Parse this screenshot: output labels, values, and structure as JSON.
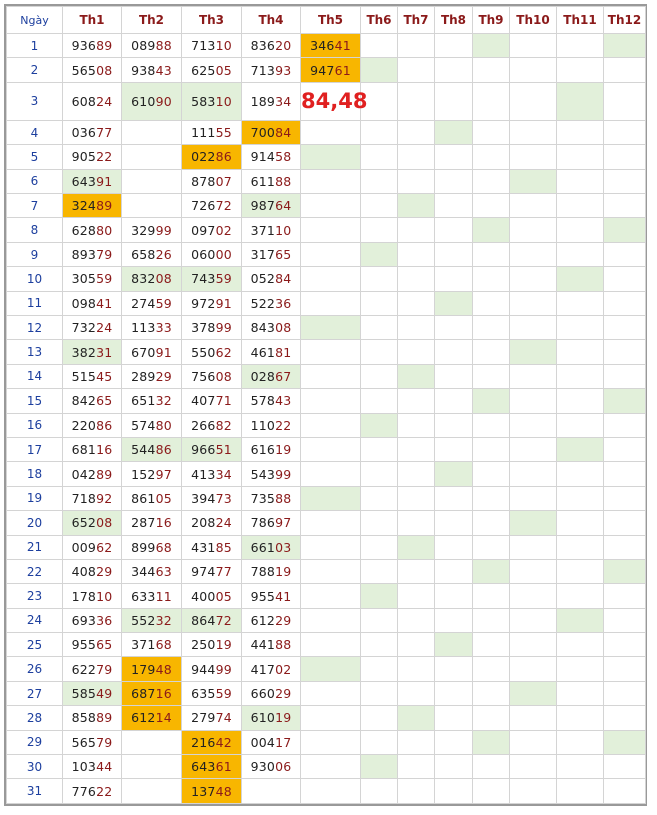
{
  "headers": [
    "Ngày",
    "Th1",
    "Th2",
    "Th3",
    "Th4",
    "Th5",
    "Th6",
    "Th7",
    "Th8",
    "Th9",
    "Th10",
    "Th11",
    "Th12"
  ],
  "highlight_colors": {
    "green": "#e2f0da",
    "orange": "#f8b600",
    "result_text": "#e02020"
  },
  "rows": [
    {
      "day": "1",
      "values": [
        "93689",
        "08988",
        "71310",
        "83620",
        "34641",
        "",
        "",
        "",
        "",
        "",
        "",
        ""
      ],
      "green": [
        8,
        11
      ],
      "orange": [
        4
      ]
    },
    {
      "day": "2",
      "values": [
        "56508",
        "93843",
        "62505",
        "71393",
        "94761",
        "",
        "",
        "",
        "",
        "",
        "",
        ""
      ],
      "green": [
        5
      ],
      "orange": [
        4
      ]
    },
    {
      "day": "3",
      "values": [
        "60824",
        "61090",
        "58310",
        "18934",
        "84,48",
        "",
        "",
        "",
        "",
        "",
        "",
        ""
      ],
      "green": [
        1,
        2,
        10
      ],
      "orange": [],
      "big": 4
    },
    {
      "day": "4",
      "values": [
        "03677",
        "",
        "11155",
        "70084",
        "",
        "",
        "",
        "",
        "",
        "",
        "",
        ""
      ],
      "green": [
        7
      ],
      "orange": [
        3
      ]
    },
    {
      "day": "5",
      "values": [
        "90522",
        "",
        "02286",
        "91458",
        "",
        "",
        "",
        "",
        "",
        "",
        "",
        ""
      ],
      "green": [
        4
      ],
      "orange": [
        2
      ]
    },
    {
      "day": "6",
      "values": [
        "64391",
        "",
        "87807",
        "61188",
        "",
        "",
        "",
        "",
        "",
        "",
        "",
        ""
      ],
      "green": [
        0,
        9
      ],
      "orange": []
    },
    {
      "day": "7",
      "values": [
        "32489",
        "",
        "72672",
        "98764",
        "",
        "",
        "",
        "",
        "",
        "",
        "",
        ""
      ],
      "green": [
        3,
        6
      ],
      "orange": [
        0
      ]
    },
    {
      "day": "8",
      "values": [
        "62880",
        "32999",
        "09702",
        "37110",
        "",
        "",
        "",
        "",
        "",
        "",
        "",
        ""
      ],
      "green": [
        8,
        11
      ],
      "orange": []
    },
    {
      "day": "9",
      "values": [
        "89379",
        "65826",
        "06000",
        "31765",
        "",
        "",
        "",
        "",
        "",
        "",
        "",
        ""
      ],
      "green": [
        5
      ],
      "orange": []
    },
    {
      "day": "10",
      "values": [
        "30559",
        "83208",
        "74359",
        "05284",
        "",
        "",
        "",
        "",
        "",
        "",
        "",
        ""
      ],
      "green": [
        1,
        2,
        10
      ],
      "orange": []
    },
    {
      "day": "11",
      "values": [
        "09841",
        "27459",
        "97291",
        "52236",
        "",
        "",
        "",
        "",
        "",
        "",
        "",
        ""
      ],
      "green": [
        7
      ],
      "orange": []
    },
    {
      "day": "12",
      "values": [
        "73224",
        "11333",
        "37899",
        "84308",
        "",
        "",
        "",
        "",
        "",
        "",
        "",
        ""
      ],
      "green": [
        4
      ],
      "orange": []
    },
    {
      "day": "13",
      "values": [
        "38231",
        "67091",
        "55062",
        "46181",
        "",
        "",
        "",
        "",
        "",
        "",
        "",
        ""
      ],
      "green": [
        0,
        9
      ],
      "orange": []
    },
    {
      "day": "14",
      "values": [
        "51545",
        "28929",
        "75608",
        "02867",
        "",
        "",
        "",
        "",
        "",
        "",
        "",
        ""
      ],
      "green": [
        3,
        6
      ],
      "orange": []
    },
    {
      "day": "15",
      "values": [
        "84265",
        "65132",
        "40771",
        "57843",
        "",
        "",
        "",
        "",
        "",
        "",
        "",
        ""
      ],
      "green": [
        8,
        11
      ],
      "orange": []
    },
    {
      "day": "16",
      "values": [
        "22086",
        "57480",
        "26682",
        "11022",
        "",
        "",
        "",
        "",
        "",
        "",
        "",
        ""
      ],
      "green": [
        5
      ],
      "orange": []
    },
    {
      "day": "17",
      "values": [
        "68116",
        "54486",
        "96651",
        "61619",
        "",
        "",
        "",
        "",
        "",
        "",
        "",
        ""
      ],
      "green": [
        1,
        2,
        10
      ],
      "orange": []
    },
    {
      "day": "18",
      "values": [
        "04289",
        "15297",
        "41334",
        "54399",
        "",
        "",
        "",
        "",
        "",
        "",
        "",
        ""
      ],
      "green": [
        7
      ],
      "orange": []
    },
    {
      "day": "19",
      "values": [
        "71892",
        "86105",
        "39473",
        "73588",
        "",
        "",
        "",
        "",
        "",
        "",
        "",
        ""
      ],
      "green": [
        4
      ],
      "orange": []
    },
    {
      "day": "20",
      "values": [
        "65208",
        "28716",
        "20824",
        "78697",
        "",
        "",
        "",
        "",
        "",
        "",
        "",
        ""
      ],
      "green": [
        0,
        9
      ],
      "orange": []
    },
    {
      "day": "21",
      "values": [
        "00962",
        "89968",
        "43185",
        "66103",
        "",
        "",
        "",
        "",
        "",
        "",
        "",
        ""
      ],
      "green": [
        3,
        6
      ],
      "orange": []
    },
    {
      "day": "22",
      "values": [
        "40829",
        "34463",
        "97477",
        "78819",
        "",
        "",
        "",
        "",
        "",
        "",
        "",
        ""
      ],
      "green": [
        8,
        11
      ],
      "orange": []
    },
    {
      "day": "23",
      "values": [
        "17810",
        "63311",
        "40005",
        "95541",
        "",
        "",
        "",
        "",
        "",
        "",
        "",
        ""
      ],
      "green": [
        5
      ],
      "orange": []
    },
    {
      "day": "24",
      "values": [
        "69336",
        "55232",
        "86472",
        "61229",
        "",
        "",
        "",
        "",
        "",
        "",
        "",
        ""
      ],
      "green": [
        1,
        2,
        10
      ],
      "orange": []
    },
    {
      "day": "25",
      "values": [
        "95565",
        "37168",
        "25019",
        "44188",
        "",
        "",
        "",
        "",
        "",
        "",
        "",
        ""
      ],
      "green": [
        7
      ],
      "orange": []
    },
    {
      "day": "26",
      "values": [
        "62279",
        "17948",
        "94499",
        "41702",
        "",
        "",
        "",
        "",
        "",
        "",
        "",
        ""
      ],
      "green": [
        4
      ],
      "orange": [
        1
      ]
    },
    {
      "day": "27",
      "values": [
        "58549",
        "68716",
        "63559",
        "66029",
        "",
        "",
        "",
        "",
        "",
        "",
        "",
        ""
      ],
      "green": [
        0,
        9
      ],
      "orange": [
        1
      ]
    },
    {
      "day": "28",
      "values": [
        "85889",
        "61214",
        "27974",
        "61019",
        "",
        "",
        "",
        "",
        "",
        "",
        "",
        ""
      ],
      "green": [
        3,
        6
      ],
      "orange": [
        1
      ]
    },
    {
      "day": "29",
      "values": [
        "56579",
        "",
        "21642",
        "00417",
        "",
        "",
        "",
        "",
        "",
        "",
        "",
        ""
      ],
      "green": [
        8,
        11
      ],
      "orange": [
        2
      ]
    },
    {
      "day": "30",
      "values": [
        "10344",
        "",
        "64361",
        "93006",
        "",
        "",
        "",
        "",
        "",
        "",
        "",
        ""
      ],
      "green": [
        5
      ],
      "orange": [
        2
      ]
    },
    {
      "day": "31",
      "values": [
        "77622",
        "",
        "13748",
        "",
        "",
        "",
        "",
        "",
        "",
        "",
        "",
        ""
      ],
      "green": [],
      "orange": [
        2
      ]
    }
  ]
}
